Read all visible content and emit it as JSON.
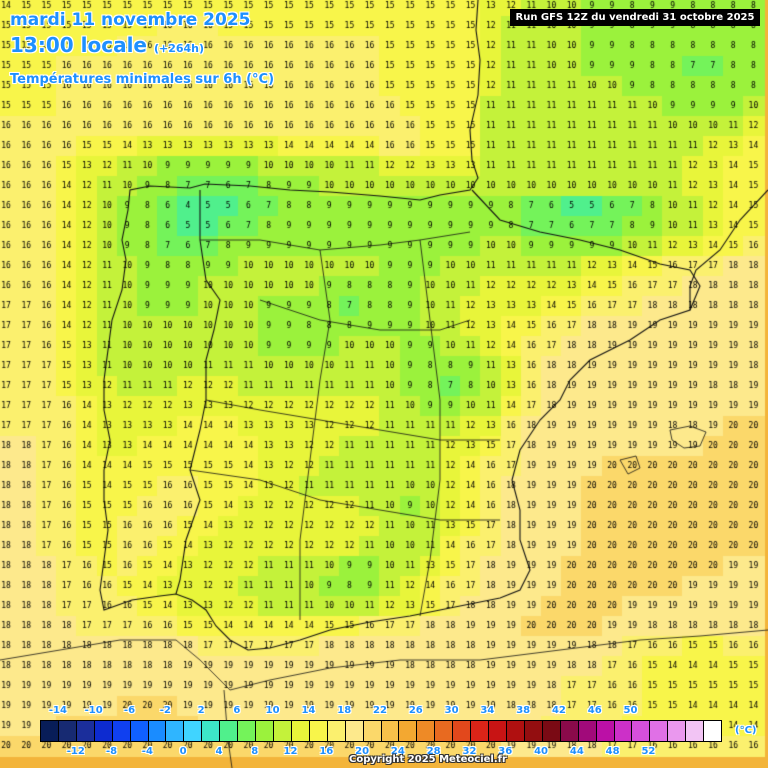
{
  "header": {
    "date": "mardi 11 novembre 2025",
    "time": "13:00 locale",
    "lead": "(+264h)",
    "product": "Températures minimales sur 6h (°C)",
    "run": "Run GFS 12Z du vendredi 31 octobre 2025"
  },
  "legend": {
    "top_labels": [
      "-14",
      "-10",
      "-6",
      "-2",
      "2",
      "6",
      "10",
      "14",
      "18",
      "22",
      "26",
      "30",
      "34",
      "38",
      "42",
      "46",
      "50"
    ],
    "bottom_labels": [
      "-12",
      "-8",
      "-4",
      "0",
      "4",
      "8",
      "12",
      "16",
      "20",
      "24",
      "28",
      "32",
      "36",
      "40",
      "44",
      "48",
      "52"
    ],
    "unit": "(°C)",
    "colors": [
      "#081d58",
      "#172a72",
      "#1b2e9b",
      "#0d2bd0",
      "#1040f0",
      "#1060ff",
      "#1a8cff",
      "#2fb5ff",
      "#40d4ff",
      "#3de6c8",
      "#50f08c",
      "#74f35a",
      "#9bf23c",
      "#c4f23a",
      "#e8f53a",
      "#f8f54a",
      "#fbf06e",
      "#fde98c",
      "#fbd86a",
      "#f7c14a",
      "#f3a831",
      "#ee8a26",
      "#e86a20",
      "#e2481c",
      "#db2418",
      "#c81414",
      "#b01010",
      "#930e10",
      "#7a0a14",
      "#8a0a4a",
      "#a10a7a",
      "#bb10a6",
      "#cc30c8",
      "#d650dc",
      "#e070e6",
      "#ea98ee",
      "#f2c4f4",
      "#ffffff"
    ]
  },
  "copyright": "Copyright 2025 Meteociel.fr",
  "map": {
    "grid": {
      "rows": [
        "14 15 15 15 15 15 15 15 15 15 15 15 15 15 15 15 15 15 15 15 15 15 15 15 13 12 11 10 10 9 9 8 9 9 8 8 8 8",
        "15 15 15 15 15 15 15 15 16 16 16 15 15 15 15 15 15 15 15 15 15 15 15 15 12 11 11 10 10 9 9 8 9 9 8 8 8 8",
        "15 15 15 15 15 15 16 16 16 16 16 16 16 16 16 16 16 16 16 15 15 15 15 15 12 11 11 10 10 9 9 8 8 8 8 8 8 8",
        "15 15 15 16 16 16 16 16 16 16 16 16 16 16 16 16 16 16 16 15 15 15 15 15 12 11 11 10 10 9 9 9 8 8 7 7 8 8",
        "15 15 15 16 16 16 16 16 16 16 16 16 16 16 16 16 16 16 16 15 15 15 15 15 12 11 11 11 11 10 10 9 8 8 8 8 8 8",
        "15 15 15 16 16 16 16 16 16 16 16 16 16 16 16 16 16 16 16 16 15 15 15 15 11 11 11 11 11 11 11 11 10 9 9 9 9 10",
        "16 16 16 16 16 16 16 16 16 16 16 16 16 16 16 16 16 16 16 16 16 15 15 15 11 11 11 11 11 11 11 11 11 10 10 10 11 12",
        "16 16 16 16 15 15 14 13 13 13 13 13 13 13 14 14 14 14 14 16 16 15 15 15 11 11 11 11 11 11 11 11 11 11 11 12 13 14",
        "16 16 16 15 13 12 11 10 9 9 9 9 9 10 10 10 10 11 11 12 12 13 13 13 11 11 11 11 11 11 11 11 11 11 12 13 14 15",
        "16 16 16 14 12 11 10 9 8 7 7 6 7 8 9 9 10 10 10 10 10 10 10 10 10 10 10 10 10 10 10 10 10 11 12 13 14 15",
        "16 16 16 14 12 10 9 8 6 4 5 5 6 7 8 8 9 9 9 9 9 9 9 9 9 8 7 6 5 5 6 7 8 10 11 12 14 15",
        "16 16 16 14 12 10 9 8 6 5 5 6 7 8 9 9 9 9 9 9 9 9 9 9 9 8 7 7 6 7 7 8 9 10 11 13 14 15",
        "16 16 16 14 12 10 9 8 7 6 7 8 9 9 9 9 9 9 9 9 9 9 9 9 10 10 9 9 9 9 9 10 11 12 13 14 15 16",
        "16 16 16 14 12 11 10 9 8 8 9 9 10 10 10 10 10 10 10 9 9 9 10 10 11 11 11 11 11 12 13 14 15 16 17 17 18 18",
        "16 16 16 14 12 11 10 9 9 9 10 10 10 10 10 10 9 8 8 8 9 10 10 11 12 12 12 12 13 14 15 16 17 17 18 18 18 18",
        "17 17 16 14 12 11 10 9 9 9 10 10 10 9 9 9 8 7 8 8 9 10 11 12 13 13 13 14 15 16 17 17 18 18 18 18 18 18",
        "17 17 16 14 12 11 10 10 10 10 10 10 10 9 9 8 8 8 9 9 9 10 11 12 13 14 15 16 17 18 18 19 19 19 19 19 19 19",
        "17 17 16 15 13 11 10 10 10 10 10 10 10 9 9 9 9 10 10 10 9 9 10 11 12 14 16 17 18 18 19 19 19 19 19 19 19 18",
        "17 17 17 15 13 11 10 10 10 10 11 11 11 10 10 10 10 11 11 10 9 8 8 9 11 13 16 18 18 19 19 19 19 19 19 19 19 18",
        "17 17 17 15 13 12 11 11 11 12 12 12 11 11 11 11 11 11 11 10 9 8 7 8 10 13 16 18 19 19 19 19 19 19 19 18 18 19",
        "17 17 17 16 14 13 12 12 12 13 13 13 12 12 12 12 12 12 12 11 10 9 9 10 11 14 17 18 19 19 19 19 19 19 19 19 19 19",
        "17 17 17 16 14 13 13 13 13 14 14 14 13 13 13 13 12 12 12 11 11 11 11 12 13 16 18 19 19 19 19 19 19 18 18 19 20 20",
        "18 18 17 16 14 13 13 14 14 14 14 14 14 13 13 12 12 11 11 11 11 11 12 13 15 17 18 19 19 19 19 19 19 19 19 20 20 20",
        "18 18 17 16 14 14 14 15 15 15 15 15 14 13 12 12 11 11 11 11 11 11 12 14 16 17 19 19 19 19 20 20 20 20 20 20 20 20",
        "18 18 17 16 15 14 15 15 16 16 15 15 14 13 12 11 11 11 11 11 10 10 12 14 16 18 19 19 19 20 20 20 20 20 20 20 20 20",
        "18 18 17 16 15 15 15 16 16 16 15 14 13 12 12 12 12 12 11 10 9 10 12 14 16 18 19 19 19 20 20 20 20 20 20 20 20 20",
        "18 18 17 16 15 15 16 16 16 15 14 13 12 12 12 12 12 12 12 11 10 11 13 15 17 18 19 19 19 20 20 20 20 20 20 20 20 20",
        "18 18 17 16 15 15 16 16 15 14 13 12 12 12 12 12 12 12 11 10 10 11 14 16 17 18 19 19 19 20 20 20 20 20 20 20 20 20",
        "18 18 18 17 16 15 16 15 14 13 12 12 12 11 11 11 10 9 9 10 11 13 15 17 18 19 19 19 20 20 20 20 20 20 20 20 19 19",
        "18 18 18 17 16 16 15 14 13 13 12 12 11 11 11 10 9 8 9 11 12 14 16 17 18 19 19 19 20 20 20 20 20 20 19 19 19 19",
        "18 18 18 17 17 16 16 15 14 13 13 12 12 11 11 11 10 10 11 12 13 15 17 18 18 19 19 20 20 20 20 19 19 19 19 19 19 19",
        "18 18 18 18 17 17 17 16 16 15 15 14 14 14 14 14 15 15 16 17 17 18 18 19 19 19 20 20 20 20 19 19 18 18 18 18 18 18",
        "18 18 18 18 18 18 18 18 18 18 17 17 17 17 17 17 18 18 18 18 18 18 18 18 19 19 19 19 19 18 18 17 16 16 15 15 16 16",
        "18 18 18 18 18 18 18 18 18 19 19 19 19 19 19 19 19 19 19 19 18 18 18 18 19 19 19 19 18 18 17 16 15 14 14 14 15 15",
        "19 19 19 19 19 19 19 19 19 19 19 19 19 19 19 19 19 19 19 19 19 19 19 19 19 19 19 18 17 17 16 16 15 15 15 15 15 15",
        "19 19 19 19 19 19 20 20 20 19 19 19 19 19 19 19 19 19 19 19 19 19 19 19 19 18 18 18 17 17 16 16 15 15 14 14 14 14",
        "19 19 19 20 20 20 20 20 20 20 19 19 19 19 19 19 19 19 19 19 19 19 19 19 19 18 18 17 17 16 16 15 15 15 15 14 14 14",
        "20 20 20 20 20 20 20 20 20 20 20 20 20 20 20 20 20 20 20 20 20 20 20 20 20 19 19 19 18 18 17 17 16 16 16 16 16 16"
      ]
    }
  }
}
